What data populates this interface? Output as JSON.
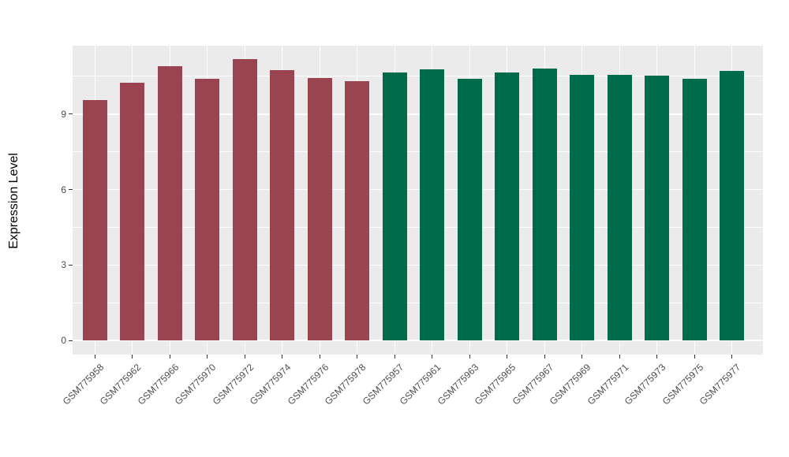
{
  "chart_data": {
    "type": "bar",
    "title": "",
    "xlabel": "",
    "ylabel": "Expression Level",
    "categories": [
      "GSM775958",
      "GSM775962",
      "GSM775966",
      "GSM775970",
      "GSM775972",
      "GSM775974",
      "GSM775976",
      "GSM775978",
      "GSM775957",
      "GSM775961",
      "GSM775963",
      "GSM775965",
      "GSM775967",
      "GSM775969",
      "GSM775971",
      "GSM775973",
      "GSM775975",
      "GSM775977"
    ],
    "values": [
      9.56,
      10.25,
      10.91,
      10.41,
      11.19,
      10.76,
      10.44,
      10.31,
      10.66,
      10.78,
      10.41,
      10.66,
      10.81,
      10.56,
      10.56,
      10.53,
      10.41,
      10.72
    ],
    "bar_groups": [
      "red",
      "red",
      "red",
      "red",
      "red",
      "red",
      "red",
      "red",
      "green",
      "green",
      "green",
      "green",
      "green",
      "green",
      "green",
      "green",
      "green",
      "green"
    ],
    "group_colors": {
      "red": "#9A4452",
      "green": "#006B4A"
    },
    "y_ticks": [
      0,
      3,
      6,
      9
    ],
    "y_tick_labels": [
      "0",
      "3",
      "6",
      "9"
    ],
    "y_minor_ticks": [
      1.5,
      4.5,
      7.5,
      10.5
    ],
    "ylim": [
      -0.56,
      11.72
    ],
    "grid": true,
    "legend_position": "none",
    "panel_bg": "#EBEBEB",
    "grid_color": "#FFFFFF",
    "axis_text_color": "#4D4D4D",
    "axis_title_color": "#000000",
    "tick_color": "#333333"
  }
}
